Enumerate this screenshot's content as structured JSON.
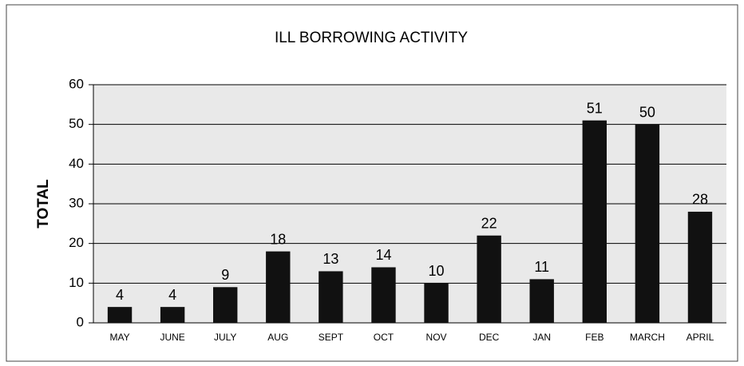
{
  "chart_data": {
    "type": "bar",
    "title": "ILL BORROWING ACTIVITY",
    "y_label": "TOTAL",
    "categories": [
      "MAY",
      "JUNE",
      "JULY",
      "AUG",
      "SEPT",
      "OCT",
      "NOV",
      "DEC",
      "JAN",
      "FEB",
      "MARCH",
      "APRIL"
    ],
    "values": [
      4,
      4,
      9,
      18,
      13,
      14,
      10,
      22,
      11,
      51,
      50,
      28
    ],
    "color": "#111111",
    "ylim": [
      0,
      60
    ],
    "yticks": [
      0,
      10,
      20,
      30,
      40,
      50,
      60
    ],
    "grid": true
  }
}
